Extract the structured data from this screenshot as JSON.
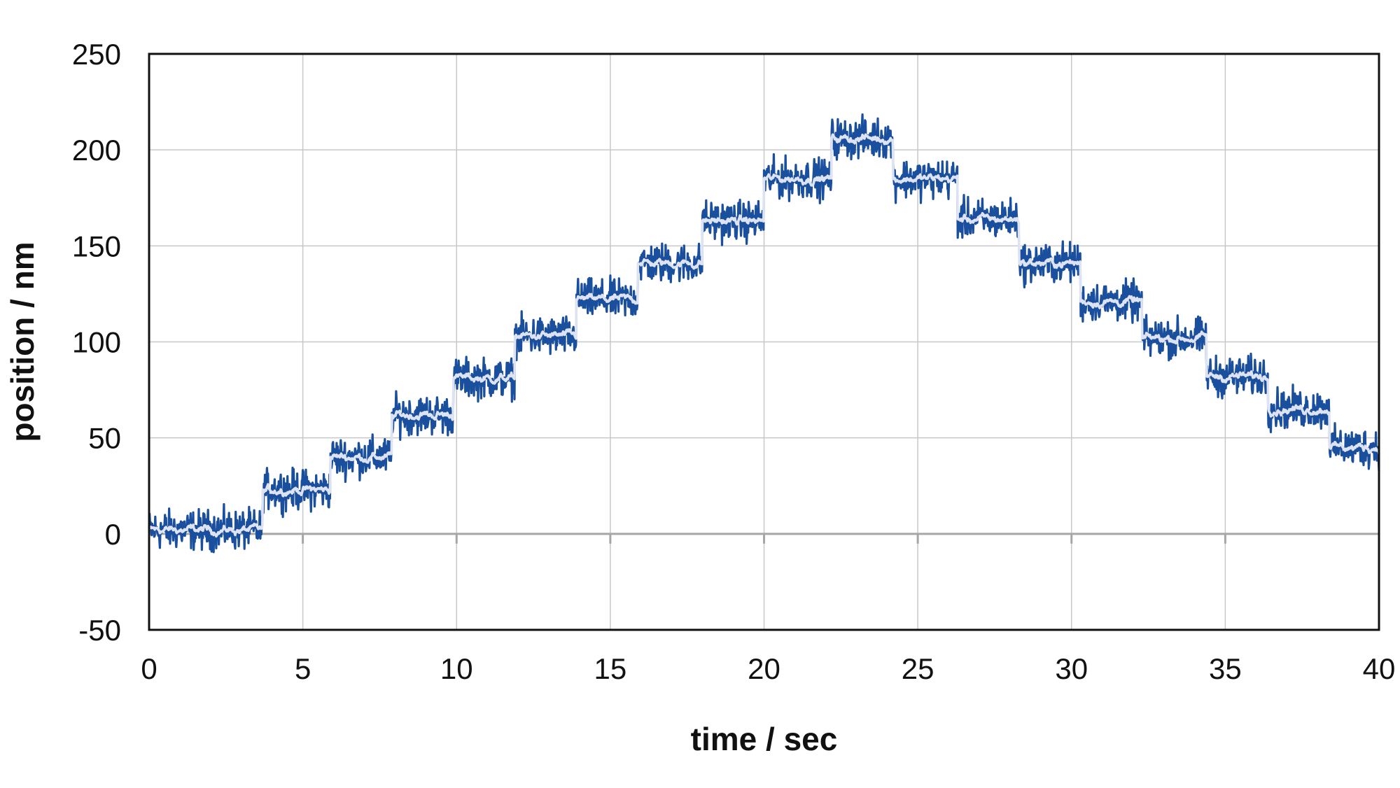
{
  "chart_data": {
    "type": "line",
    "title": "",
    "xlabel": "time / sec",
    "ylabel": "position / nm",
    "xlim": [
      0,
      40
    ],
    "ylim": [
      -50,
      250
    ],
    "x_ticks": [
      0,
      5,
      10,
      15,
      20,
      25,
      30,
      35,
      40
    ],
    "y_ticks": [
      -50,
      0,
      50,
      100,
      150,
      200,
      250
    ],
    "x_tick_labels": [
      "0",
      "5",
      "10",
      "15",
      "20",
      "25",
      "30",
      "35",
      "40"
    ],
    "y_tick_labels": [
      "-50",
      "0",
      "50",
      "100",
      "150",
      "200",
      "250"
    ],
    "grid": true,
    "legend": "none",
    "colors": {
      "raw": "#1a4f9e",
      "filtered": "#dde3f2"
    },
    "steps": [
      {
        "t_start": 0.0,
        "t_end": 3.7,
        "position": 2
      },
      {
        "t_start": 3.7,
        "t_end": 5.9,
        "position": 23
      },
      {
        "t_start": 5.9,
        "t_end": 7.9,
        "position": 40
      },
      {
        "t_start": 7.9,
        "t_end": 9.9,
        "position": 62
      },
      {
        "t_start": 9.9,
        "t_end": 11.9,
        "position": 81
      },
      {
        "t_start": 11.9,
        "t_end": 13.9,
        "position": 103
      },
      {
        "t_start": 13.9,
        "t_end": 15.9,
        "position": 122
      },
      {
        "t_start": 15.9,
        "t_end": 18.0,
        "position": 141
      },
      {
        "t_start": 18.0,
        "t_end": 20.0,
        "position": 163
      },
      {
        "t_start": 20.0,
        "t_end": 22.2,
        "position": 185
      },
      {
        "t_start": 22.2,
        "t_end": 24.2,
        "position": 206
      },
      {
        "t_start": 24.2,
        "t_end": 26.3,
        "position": 185
      },
      {
        "t_start": 26.3,
        "t_end": 28.3,
        "position": 164
      },
      {
        "t_start": 28.3,
        "t_end": 30.3,
        "position": 141
      },
      {
        "t_start": 30.3,
        "t_end": 32.3,
        "position": 121
      },
      {
        "t_start": 32.3,
        "t_end": 34.4,
        "position": 102
      },
      {
        "t_start": 34.4,
        "t_end": 36.4,
        "position": 82
      },
      {
        "t_start": 36.4,
        "t_end": 38.4,
        "position": 65
      },
      {
        "t_start": 38.4,
        "t_end": 40.0,
        "position": 45
      }
    ],
    "noise_amplitude": 5
  }
}
